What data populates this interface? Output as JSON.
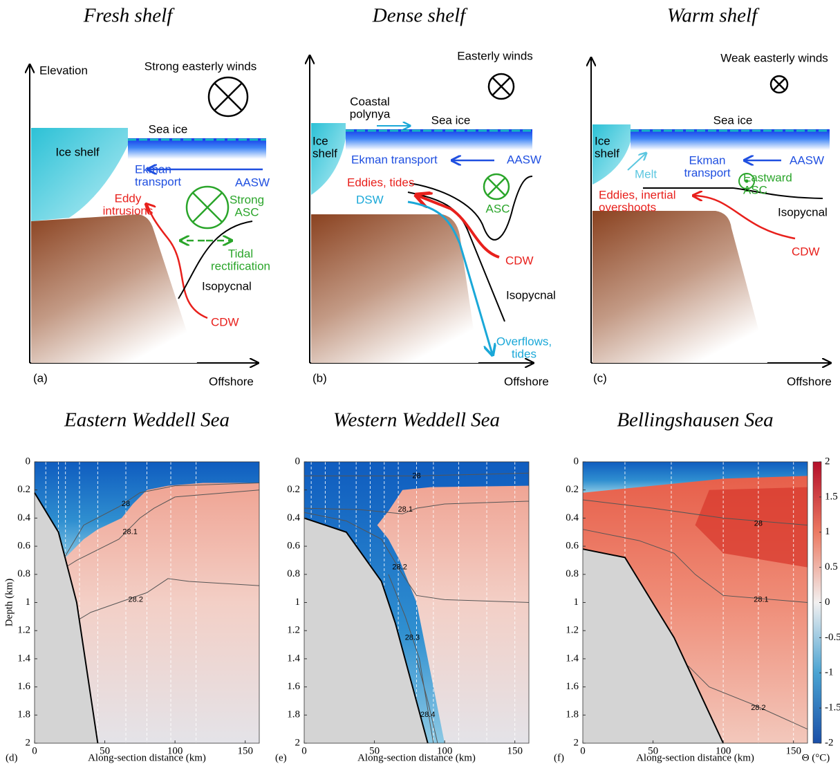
{
  "schematics": [
    {
      "title": "Fresh shelf",
      "panel": "(a)",
      "y_axis": "Elevation",
      "x_axis": "Offshore",
      "winds": "Strong easterly winds",
      "sea_ice": "Sea ice",
      "ice_shelf": [
        "Ice shelf"
      ],
      "ekman": [
        "Ekman",
        "transport"
      ],
      "water_mass": "AASW",
      "eddies": [
        "Eddy",
        "intrusions"
      ],
      "asc": [
        "Strong",
        "ASC"
      ],
      "tidal": [
        "Tidal",
        "rectification"
      ],
      "isopycnal": "Isopycnal",
      "cdw": "CDW"
    },
    {
      "title": "Dense shelf",
      "panel": "(b)",
      "x_axis": "Offshore",
      "winds": "Easterly winds",
      "polynya": [
        "Coastal",
        "polynya"
      ],
      "sea_ice": "Sea ice",
      "ice_shelf": [
        "Ice",
        "shelf"
      ],
      "ekman": [
        "Ekman transport"
      ],
      "water_mass": "AASW",
      "eddies": [
        "Eddies, tides"
      ],
      "dsw": "DSW",
      "asc": [
        "ASC"
      ],
      "cdw": "CDW",
      "isopycnal": "Isopycnal",
      "overflows": [
        "Overflows,",
        "tides"
      ]
    },
    {
      "title": "Warm shelf",
      "panel": "(c)",
      "x_axis": "Offshore",
      "winds": "Weak easterly winds",
      "sea_ice": "Sea ice",
      "ice_shelf": [
        "Ice",
        "shelf"
      ],
      "melt": "Melt",
      "ekman": [
        "Ekman",
        "transport"
      ],
      "water_mass": "AASW",
      "asc": [
        "Eastward",
        "ASC"
      ],
      "eddies": [
        "Eddies, inertial",
        "overshoots"
      ],
      "isopycnal": "Isopycnal",
      "cdw": "CDW"
    }
  ],
  "sections": [
    {
      "title": "Eastern Weddell Sea",
      "panel": "(d)",
      "xlabel": "Along-section distance (km)",
      "ylabel": "Depth (km)",
      "xlim": [
        0,
        160
      ],
      "ylim": [
        0,
        2
      ],
      "y_inverted": true,
      "xticks": [
        0,
        50,
        100,
        150
      ],
      "yticks": [
        0,
        0.2,
        0.4,
        0.6,
        0.8,
        1,
        1.2,
        1.4,
        1.6,
        1.8,
        2
      ],
      "contours": [
        "28",
        "28.1",
        "28.2"
      ]
    },
    {
      "title": "Western Weddell Sea",
      "panel": "(e)",
      "xlabel": "Along-section distance (km)",
      "xlim": [
        0,
        160
      ],
      "ylim": [
        0,
        2
      ],
      "y_inverted": true,
      "xticks": [
        0,
        50,
        100,
        150
      ],
      "yticks": [
        0,
        0.2,
        0.4,
        0.6,
        0.8,
        1,
        1.2,
        1.4,
        1.6,
        1.8,
        2
      ],
      "contours": [
        "28",
        "28.1",
        "28.2",
        "28.3",
        "28.4"
      ]
    },
    {
      "title": "Bellingshausen Sea",
      "panel": "(f)",
      "xlabel": "Along-section distance (km)",
      "xlim": [
        0,
        160
      ],
      "ylim": [
        0,
        2
      ],
      "y_inverted": true,
      "xticks": [
        0,
        50,
        100,
        150
      ],
      "yticks": [
        0,
        0.2,
        0.4,
        0.6,
        0.8,
        1,
        1.2,
        1.4,
        1.6,
        1.8,
        2
      ],
      "contours": [
        "28",
        "28.1",
        "28.2"
      ]
    }
  ],
  "colorbar": {
    "label": "Θ (°C)",
    "lim": [
      -2,
      2
    ],
    "ticks": [
      -2,
      -1.5,
      -1,
      -0.5,
      0,
      0.5,
      1,
      1.5,
      2
    ]
  }
}
